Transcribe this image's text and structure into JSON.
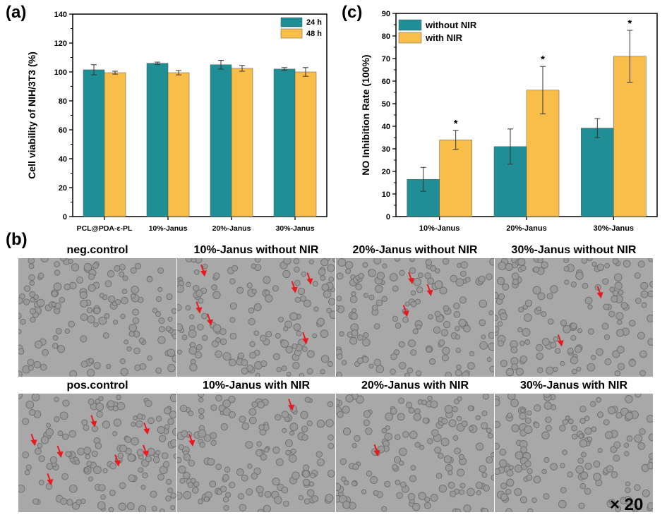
{
  "panels": {
    "a": "(a)",
    "b": "(b)",
    "c": "(c)"
  },
  "colors": {
    "teal": "#1f8f95",
    "yellow": "#f9bd4a",
    "arrow": "#e8191f"
  },
  "chart_data": [
    {
      "id": "a",
      "type": "bar",
      "ylabel": "Cell viability of NIH/3T3 (%)",
      "categories": [
        "PCL@PDA-ε-PL",
        "10%-Janus",
        "20%-Janus",
        "30%-Janus"
      ],
      "ylim": [
        0,
        140
      ],
      "yticks": [
        "0",
        "20",
        "40",
        "60",
        "80",
        "100",
        "120",
        "140"
      ],
      "legend_position": "top-right",
      "series": [
        {
          "name": "24 h",
          "color": "#1f8f95",
          "values": [
            101.5,
            106,
            105,
            102
          ],
          "errors": [
            3.5,
            0.8,
            3,
            1
          ]
        },
        {
          "name": "48 h",
          "color": "#f9bd4a",
          "values": [
            99.5,
            99.5,
            102.5,
            100
          ],
          "errors": [
            1,
            1.5,
            2,
            3
          ]
        }
      ]
    },
    {
      "id": "c",
      "type": "bar",
      "ylabel": "NO Inhibition Rate (100%)",
      "categories": [
        "10%-Janus",
        "20%-Janus",
        "30%-Janus"
      ],
      "ylim": [
        0,
        90
      ],
      "yticks": [
        "0",
        "10",
        "20",
        "30",
        "40",
        "50",
        "60",
        "70",
        "80",
        "90"
      ],
      "legend_position": "top-left",
      "series": [
        {
          "name": "without NIR",
          "color": "#1f8f95",
          "values": [
            16.5,
            31,
            39.2
          ],
          "errors": [
            5.3,
            7.8,
            4.2
          ]
        },
        {
          "name": "with NIR",
          "color": "#f9bd4a",
          "values": [
            34,
            56,
            71
          ],
          "errors": [
            4.2,
            10.5,
            11.5
          ]
        }
      ],
      "annotations": [
        "*",
        "*",
        "*"
      ]
    }
  ],
  "micrographs": {
    "row1": [
      {
        "title": "neg.control",
        "arrows": 0
      },
      {
        "title": "10%-Janus without NIR",
        "arrows": 6
      },
      {
        "title": "20%-Janus without NIR",
        "arrows": 3
      },
      {
        "title": "30%-Janus without NIR",
        "arrows": 2
      }
    ],
    "row2": [
      {
        "title": "pos.control",
        "arrows": 7
      },
      {
        "title": "10%-Janus with NIR",
        "arrows": 2
      },
      {
        "title": "20%-Janus with NIR",
        "arrows": 1
      },
      {
        "title": "30%-Janus with NIR",
        "arrows": 0
      }
    ],
    "magnification": "× 20"
  }
}
